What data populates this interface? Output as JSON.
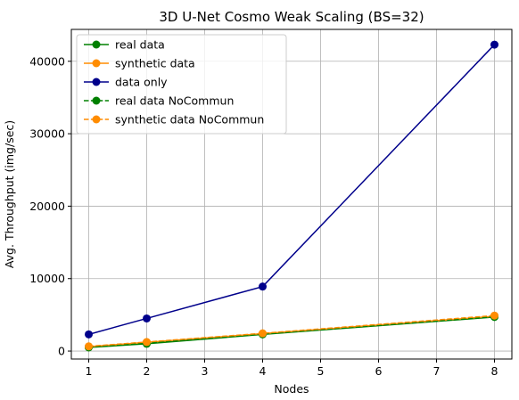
{
  "chart_data": {
    "type": "line",
    "title": "3D U-Net Cosmo Weak Scaling (BS=32)",
    "xlabel": "Nodes",
    "ylabel": "Avg. Throughput (img/sec)",
    "xlim": [
      0.7,
      8.3
    ],
    "ylim": [
      -1100,
      44400
    ],
    "xticks": [
      1,
      2,
      3,
      4,
      5,
      6,
      7,
      8
    ],
    "yticks": [
      0,
      10000,
      20000,
      30000,
      40000
    ],
    "grid": true,
    "legend_position": "top-left",
    "series": [
      {
        "name": "real data",
        "x": [
          1,
          2,
          4,
          8
        ],
        "y": [
          500,
          1000,
          2300,
          4700
        ],
        "color": "#008000",
        "linestyle": "solid",
        "marker": "circle"
      },
      {
        "name": "synthetic data",
        "x": [
          1,
          2,
          4,
          8
        ],
        "y": [
          600,
          1200,
          2400,
          4800
        ],
        "color": "#ff8c00",
        "linestyle": "solid",
        "marker": "circle"
      },
      {
        "name": "data only",
        "x": [
          1,
          2,
          4,
          8
        ],
        "y": [
          2300,
          4500,
          8900,
          42300
        ],
        "color": "#00008b",
        "linestyle": "solid",
        "marker": "circle"
      },
      {
        "name": "real data NoCommun",
        "x": [
          1,
          2,
          4,
          8
        ],
        "y": [
          550,
          1100,
          2350,
          4750
        ],
        "color": "#008000",
        "linestyle": "dashed",
        "marker": "circle"
      },
      {
        "name": "synthetic data NoCommun",
        "x": [
          1,
          2,
          4,
          8
        ],
        "y": [
          650,
          1250,
          2450,
          4900
        ],
        "color": "#ff8c00",
        "linestyle": "dashed",
        "marker": "circle"
      }
    ]
  }
}
